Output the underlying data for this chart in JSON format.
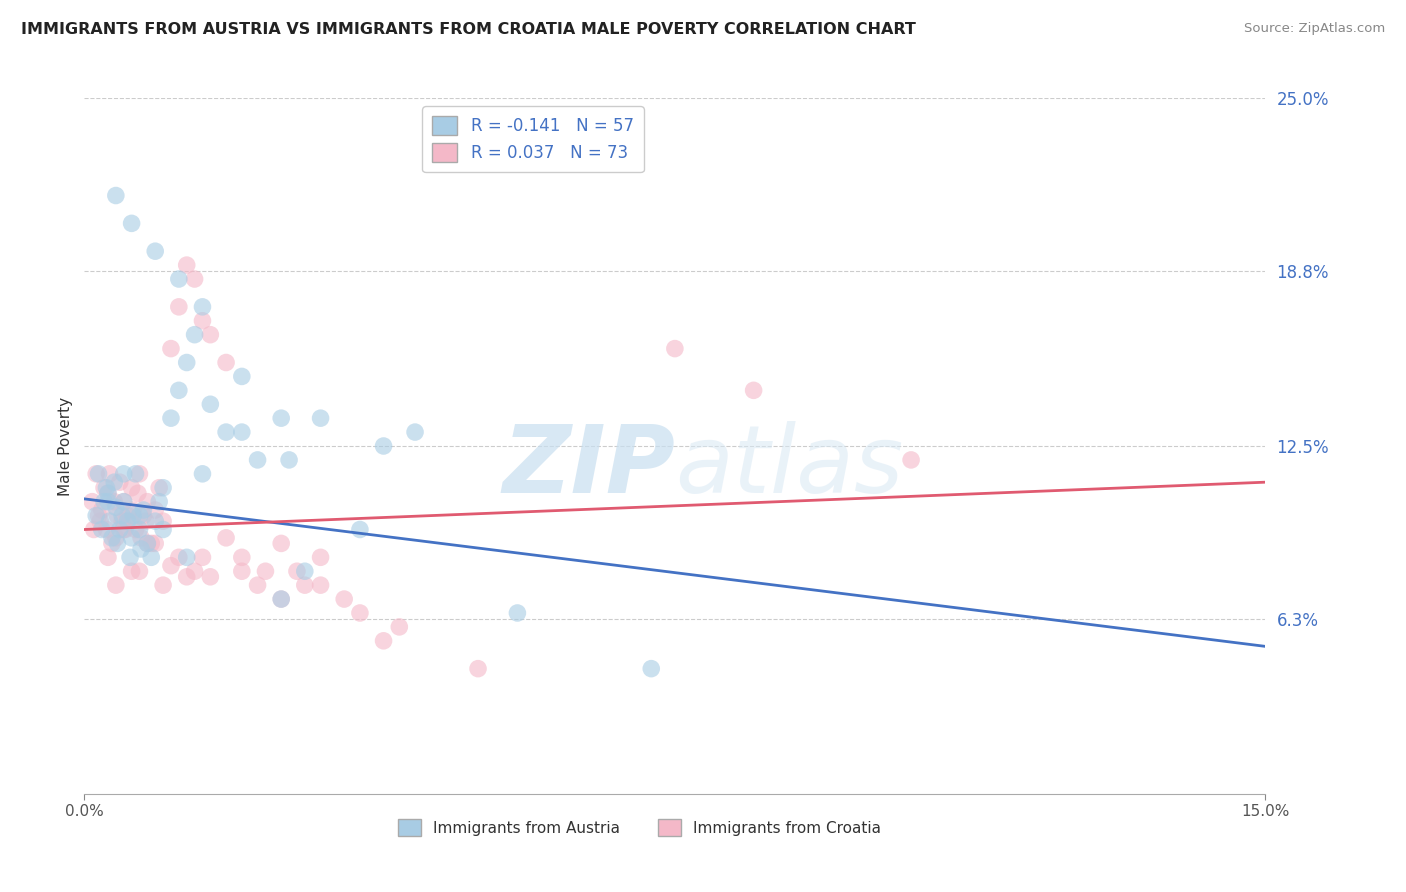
{
  "title": "IMMIGRANTS FROM AUSTRIA VS IMMIGRANTS FROM CROATIA MALE POVERTY CORRELATION CHART",
  "source": "Source: ZipAtlas.com",
  "ylabel": "Male Poverty",
  "ytick_vals": [
    0.0,
    6.3,
    12.5,
    18.8,
    25.0
  ],
  "ytick_labels": [
    "",
    "6.3%",
    "12.5%",
    "18.8%",
    "25.0%"
  ],
  "xlim": [
    0.0,
    15.0
  ],
  "ylim": [
    0.0,
    25.0
  ],
  "austria_R": -0.141,
  "austria_N": 57,
  "croatia_R": 0.037,
  "croatia_N": 73,
  "austria_color": "#a8cce4",
  "croatia_color": "#f4b8c8",
  "austria_line_color": "#4472c4",
  "croatia_line_color": "#e05a70",
  "legend_label_austria": "Immigrants from Austria",
  "legend_label_croatia": "Immigrants from Croatia",
  "watermark_zip": "ZIP",
  "watermark_atlas": "atlas",
  "austria_line_x0": 0.0,
  "austria_line_y0": 10.6,
  "austria_line_x1": 15.0,
  "austria_line_y1": 5.3,
  "croatia_line_x0": 0.0,
  "croatia_line_y0": 9.5,
  "croatia_line_x1": 15.0,
  "croatia_line_y1": 11.2,
  "austria_x": [
    0.15,
    0.18,
    0.22,
    0.25,
    0.28,
    0.3,
    0.32,
    0.35,
    0.38,
    0.4,
    0.42,
    0.45,
    0.48,
    0.5,
    0.55,
    0.58,
    0.6,
    0.62,
    0.65,
    0.7,
    0.72,
    0.75,
    0.8,
    0.85,
    0.9,
    0.95,
    1.0,
    1.1,
    1.2,
    1.3,
    1.4,
    1.5,
    1.6,
    1.8,
    2.0,
    2.2,
    2.5,
    2.8,
    3.0,
    3.5,
    0.3,
    0.5,
    0.7,
    1.0,
    1.3,
    0.4,
    0.6,
    0.9,
    1.2,
    1.5,
    2.0,
    2.5,
    5.5,
    7.2,
    3.8,
    4.2,
    2.6
  ],
  "austria_y": [
    10.0,
    11.5,
    9.5,
    10.5,
    11.0,
    10.8,
    9.8,
    9.2,
    11.2,
    10.3,
    9.0,
    9.5,
    10.0,
    10.5,
    9.8,
    8.5,
    9.2,
    10.0,
    11.5,
    9.5,
    8.8,
    10.2,
    9.0,
    8.5,
    9.8,
    10.5,
    11.0,
    13.5,
    14.5,
    15.5,
    16.5,
    11.5,
    14.0,
    13.0,
    15.0,
    12.0,
    13.5,
    8.0,
    13.5,
    9.5,
    10.5,
    11.5,
    10.0,
    9.5,
    8.5,
    21.5,
    20.5,
    19.5,
    18.5,
    17.5,
    13.0,
    7.0,
    6.5,
    4.5,
    12.5,
    13.0,
    12.0
  ],
  "croatia_x": [
    0.1,
    0.12,
    0.15,
    0.18,
    0.2,
    0.22,
    0.25,
    0.28,
    0.3,
    0.32,
    0.35,
    0.38,
    0.4,
    0.42,
    0.45,
    0.48,
    0.5,
    0.52,
    0.55,
    0.58,
    0.6,
    0.62,
    0.65,
    0.68,
    0.7,
    0.72,
    0.75,
    0.78,
    0.8,
    0.85,
    0.9,
    0.95,
    1.0,
    1.1,
    1.2,
    1.3,
    1.4,
    1.5,
    1.6,
    1.8,
    2.0,
    2.2,
    2.5,
    2.8,
    3.0,
    0.3,
    0.5,
    0.7,
    0.9,
    1.1,
    1.3,
    1.5,
    0.4,
    0.6,
    0.8,
    1.0,
    1.2,
    1.4,
    1.6,
    1.8,
    2.0,
    2.3,
    7.5,
    8.5,
    5.0,
    10.5,
    2.5,
    2.7,
    3.0,
    3.3,
    3.5,
    4.0,
    3.8
  ],
  "croatia_y": [
    10.5,
    9.5,
    11.5,
    10.0,
    9.8,
    10.2,
    11.0,
    9.5,
    10.8,
    11.5,
    9.0,
    10.5,
    9.2,
    10.0,
    11.2,
    9.8,
    10.5,
    9.5,
    10.0,
    9.8,
    11.0,
    10.2,
    9.5,
    10.8,
    11.5,
    9.2,
    10.0,
    9.8,
    10.5,
    9.0,
    10.2,
    11.0,
    9.8,
    16.0,
    17.5,
    19.0,
    18.5,
    17.0,
    16.5,
    15.5,
    8.0,
    7.5,
    7.0,
    7.5,
    8.5,
    8.5,
    9.5,
    8.0,
    9.0,
    8.2,
    7.8,
    8.5,
    7.5,
    8.0,
    9.0,
    7.5,
    8.5,
    8.0,
    7.8,
    9.2,
    8.5,
    8.0,
    16.0,
    14.5,
    4.5,
    12.0,
    9.0,
    8.0,
    7.5,
    7.0,
    6.5,
    6.0,
    5.5
  ]
}
